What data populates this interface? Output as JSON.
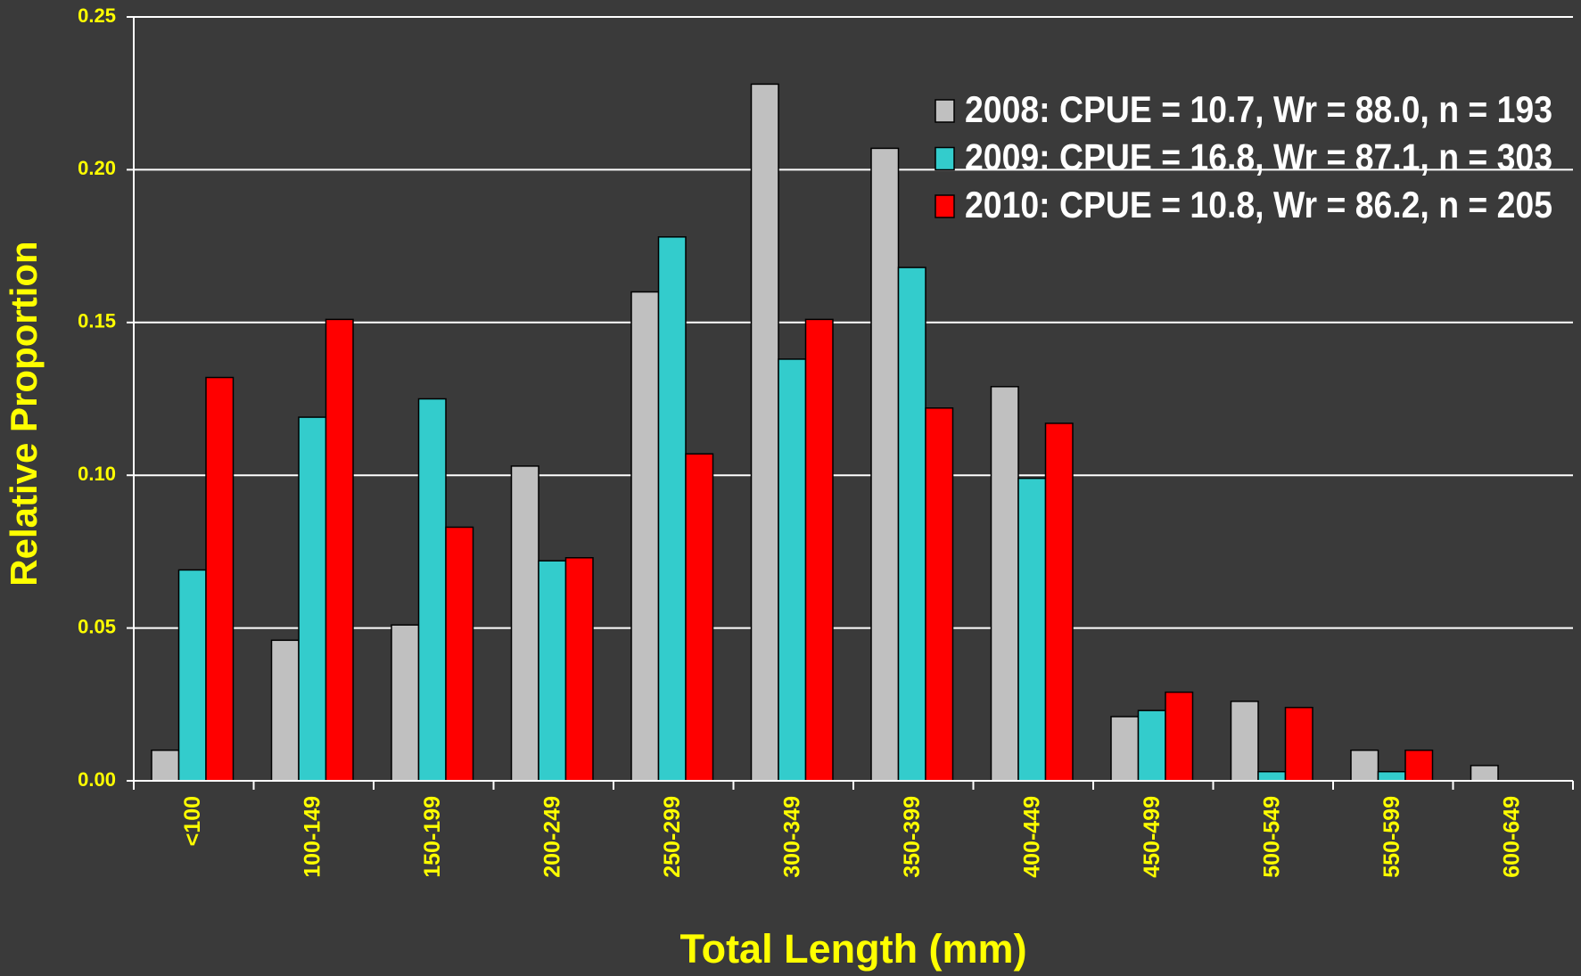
{
  "chart_data": {
    "type": "bar",
    "xlabel": "Total Length (mm)",
    "ylabel": "Relative Proportion",
    "categories": [
      "<100",
      "100-149",
      "150-199",
      "200-249",
      "250-299",
      "300-349",
      "350-399",
      "400-449",
      "450-499",
      "500-549",
      "550-599",
      "600-649"
    ],
    "series": [
      {
        "name": "2008:  CPUE = 10.7, Wr = 88.0, n = 193",
        "color": "#c0c0c0",
        "values": [
          0.01,
          0.046,
          0.051,
          0.103,
          0.16,
          0.228,
          0.207,
          0.129,
          0.021,
          0.026,
          0.01,
          0.005
        ]
      },
      {
        "name": "2009:  CPUE = 16.8, Wr = 87.1, n = 303",
        "color": "#33cccc",
        "values": [
          0.069,
          0.119,
          0.125,
          0.072,
          0.178,
          0.138,
          0.168,
          0.099,
          0.023,
          0.003,
          0.003,
          0
        ]
      },
      {
        "name": "2010:  CPUE = 10.8, Wr = 86.2, n = 205",
        "color": "#ff0000",
        "values": [
          0.132,
          0.151,
          0.083,
          0.073,
          0.107,
          0.151,
          0.122,
          0.117,
          0.029,
          0.024,
          0.01,
          0
        ]
      }
    ],
    "ylim": [
      0,
      0.25
    ],
    "yticks": [
      {
        "value": 0,
        "label": "0.00"
      },
      {
        "value": 0.05,
        "label": "0.05"
      },
      {
        "value": 0.1,
        "label": "0.10"
      },
      {
        "value": 0.15,
        "label": "0.15"
      },
      {
        "value": 0.2,
        "label": "0.20"
      },
      {
        "value": 0.25,
        "label": "0.25"
      }
    ],
    "grid": true,
    "legend": "upper right"
  }
}
